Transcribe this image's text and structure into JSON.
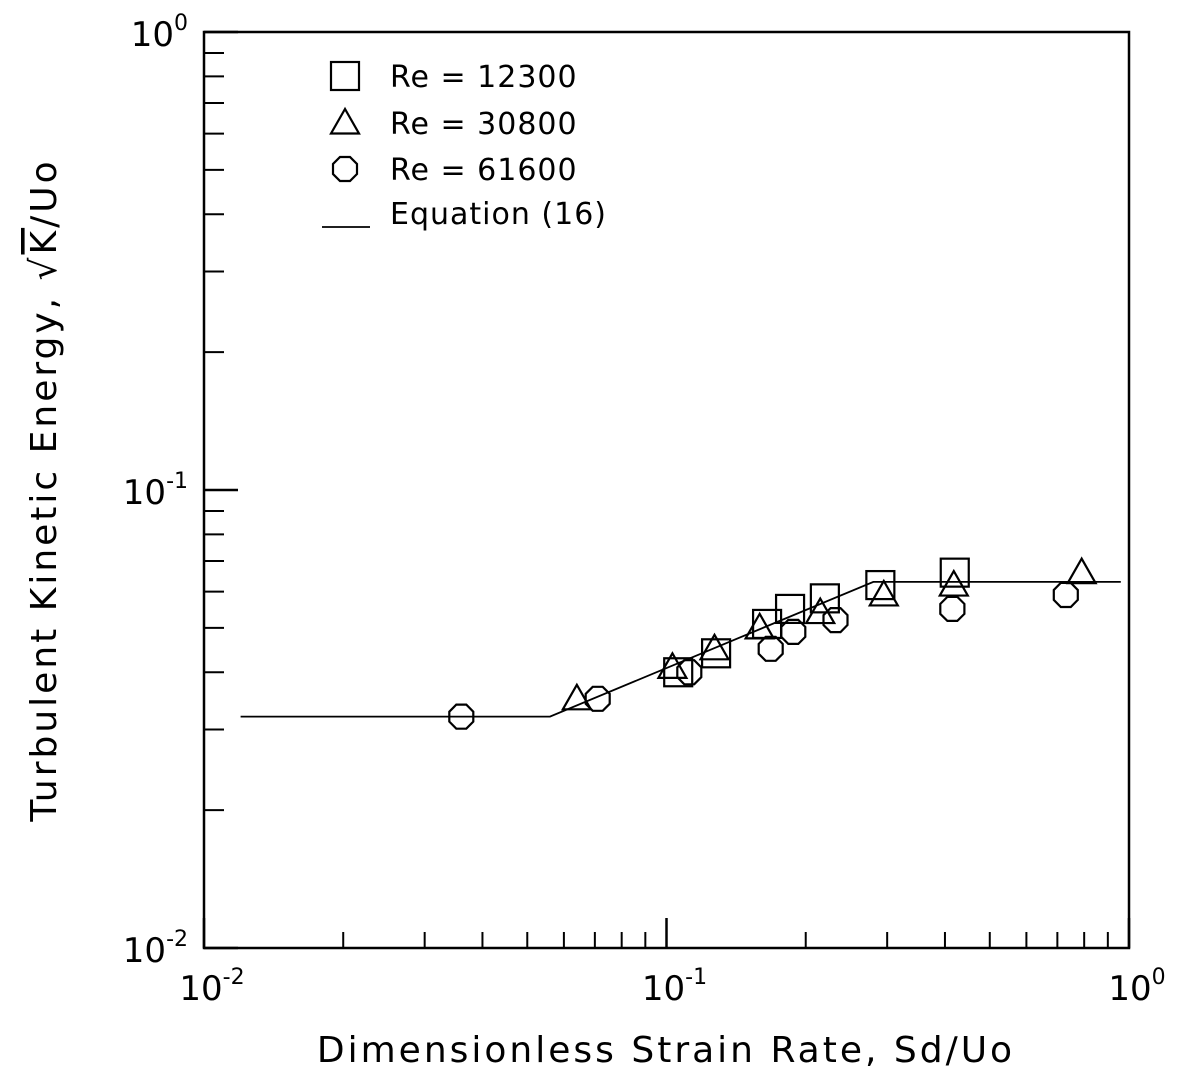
{
  "chart_data": {
    "type": "scatter",
    "xlabel": "Dimensionless Strain Rate, Sd/Uo",
    "ylabel_prefix": "Turbulent Kinetic Energy, ",
    "ylabel_root": "K",
    "ylabel_suffix": "/Uo",
    "xscale": "log",
    "yscale": "log",
    "xlim": [
      0.01,
      1
    ],
    "ylim": [
      0.01,
      1
    ],
    "x_ticks": [
      {
        "base": "10",
        "exp": "-2",
        "value": 0.01
      },
      {
        "base": "10",
        "exp": "-1",
        "value": 0.1
      },
      {
        "base": "10",
        "exp": "0",
        "value": 1
      }
    ],
    "y_ticks": [
      {
        "base": "10",
        "exp": "-2",
        "value": 0.01
      },
      {
        "base": "10",
        "exp": "-1",
        "value": 0.1
      },
      {
        "base": "10",
        "exp": "0",
        "value": 1
      }
    ],
    "grid": false,
    "legend_position": "top-left",
    "series": [
      {
        "name": "Re  =  12300",
        "marker": "square",
        "points": [
          [
            0.106,
            0.04
          ],
          [
            0.128,
            0.044
          ],
          [
            0.165,
            0.051
          ],
          [
            0.185,
            0.055
          ],
          [
            0.22,
            0.058
          ],
          [
            0.29,
            0.062
          ],
          [
            0.42,
            0.066
          ]
        ]
      },
      {
        "name": "Re  =  30800",
        "marker": "triangle",
        "points": [
          [
            0.064,
            0.035
          ],
          [
            0.103,
            0.041
          ],
          [
            0.127,
            0.045
          ],
          [
            0.159,
            0.05
          ],
          [
            0.215,
            0.054
          ],
          [
            0.295,
            0.059
          ],
          [
            0.418,
            0.062
          ],
          [
            0.79,
            0.066
          ]
        ]
      },
      {
        "name": "Re  =  61600",
        "marker": "circle",
        "points": [
          [
            0.036,
            0.032
          ],
          [
            0.071,
            0.035
          ],
          [
            0.112,
            0.04
          ],
          [
            0.168,
            0.045
          ],
          [
            0.188,
            0.049
          ],
          [
            0.232,
            0.052
          ],
          [
            0.415,
            0.055
          ],
          [
            0.73,
            0.059
          ]
        ]
      },
      {
        "name": "Equation (16)",
        "marker": "line",
        "points": [
          [
            0.012,
            0.032
          ],
          [
            0.056,
            0.032
          ],
          [
            0.28,
            0.063
          ],
          [
            0.96,
            0.063
          ]
        ]
      }
    ]
  }
}
